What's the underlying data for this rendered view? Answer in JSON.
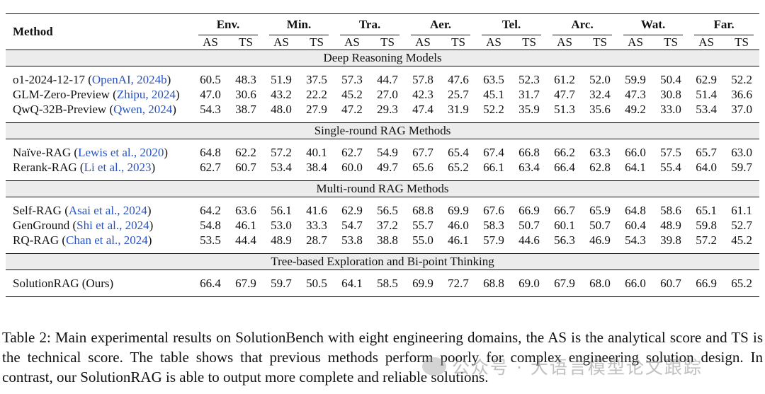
{
  "table": {
    "method_header": "Method",
    "domains": [
      "Env.",
      "Min.",
      "Tra.",
      "Aer.",
      "Tel.",
      "Arc.",
      "Wat.",
      "Far."
    ],
    "sub_headers": [
      "AS",
      "TS"
    ],
    "sections": [
      {
        "title": "Deep Reasoning Models",
        "rows": [
          {
            "method": "o1-2024-12-17 (",
            "cite": "OpenAI, 2024b",
            "suffix": ")",
            "values": [
              "60.5",
              "48.3",
              "51.9",
              "37.5",
              "57.3",
              "44.7",
              "57.8",
              "47.6",
              "63.5",
              "52.3",
              "61.2",
              "52.0",
              "59.9",
              "50.4",
              "62.9",
              "52.2"
            ]
          },
          {
            "method": "GLM-Zero-Preview (",
            "cite": "Zhipu, 2024",
            "suffix": ")",
            "values": [
              "47.0",
              "30.6",
              "43.2",
              "22.2",
              "45.2",
              "27.0",
              "42.3",
              "25.7",
              "45.1",
              "31.7",
              "47.7",
              "32.4",
              "47.3",
              "30.8",
              "51.4",
              "36.6"
            ]
          },
          {
            "method": "QwQ-32B-Preview (",
            "cite": "Qwen, 2024",
            "suffix": ")",
            "values": [
              "54.3",
              "38.7",
              "48.0",
              "27.9",
              "47.2",
              "29.3",
              "47.4",
              "31.9",
              "52.2",
              "35.9",
              "51.3",
              "35.6",
              "49.2",
              "33.0",
              "53.4",
              "37.0"
            ]
          }
        ]
      },
      {
        "title": "Single-round RAG Methods",
        "rows": [
          {
            "method": "Naïve-RAG (",
            "cite": "Lewis et al., 2020",
            "suffix": ")",
            "values": [
              "64.8",
              "62.2",
              "57.2",
              "40.1",
              "62.7",
              "54.9",
              "67.7",
              "65.4",
              "67.4",
              "66.8",
              "66.2",
              "63.3",
              "66.0",
              "57.5",
              "65.7",
              "63.0"
            ],
            "bold": [
              12
            ]
          },
          {
            "method": "Rerank-RAG (",
            "cite": "Li et al., 2023",
            "suffix": ")",
            "values": [
              "62.7",
              "60.7",
              "53.4",
              "38.4",
              "60.0",
              "49.7",
              "65.6",
              "65.2",
              "66.1",
              "63.4",
              "66.4",
              "62.8",
              "64.1",
              "55.4",
              "64.0",
              "59.7"
            ]
          }
        ]
      },
      {
        "title": "Multi-round RAG Methods",
        "rows": [
          {
            "method": "Self-RAG (",
            "cite": "Asai et al., 2024",
            "suffix": ")",
            "values": [
              "64.2",
              "63.6",
              "56.1",
              "41.6",
              "62.9",
              "56.5",
              "68.8",
              "69.9",
              "67.6",
              "66.9",
              "66.7",
              "65.9",
              "64.8",
              "58.6",
              "65.1",
              "61.1"
            ]
          },
          {
            "method": "GenGround (",
            "cite": "Shi et al., 2024",
            "suffix": ")",
            "values": [
              "54.8",
              "46.1",
              "53.0",
              "33.3",
              "54.7",
              "37.2",
              "55.7",
              "46.0",
              "58.3",
              "50.7",
              "60.1",
              "50.7",
              "60.4",
              "48.9",
              "59.8",
              "52.7"
            ]
          },
          {
            "method": "RQ-RAG (",
            "cite": "Chan et al., 2024",
            "suffix": ")",
            "values": [
              "53.5",
              "44.4",
              "48.9",
              "28.7",
              "53.8",
              "38.8",
              "55.0",
              "46.1",
              "57.9",
              "44.6",
              "56.3",
              "46.9",
              "54.3",
              "39.8",
              "57.2",
              "45.2"
            ]
          }
        ]
      },
      {
        "title": "Tree-based Exploration and Bi-point Thinking",
        "rows": [
          {
            "method": "SolutionRAG (Ours)",
            "cite": "",
            "suffix": "",
            "values": [
              "66.4",
              "67.9",
              "59.7",
              "50.5",
              "64.1",
              "58.5",
              "69.9",
              "72.7",
              "68.8",
              "69.0",
              "67.9",
              "68.0",
              "66.0",
              "60.7",
              "66.9",
              "65.2"
            ],
            "bold": [
              0,
              1,
              2,
              3,
              4,
              5,
              6,
              7,
              8,
              9,
              10,
              11,
              12,
              13,
              14,
              15
            ]
          }
        ]
      }
    ]
  },
  "caption": "Table 2: Main experimental results on SolutionBench with eight engineering domains, the AS is the analytical score and TS is the technical score. The table shows that previous methods perform poorly for complex engineering solution design. In contrast, our SolutionRAG is able to output more complete and reliable solutions.",
  "watermark": "公众号 · 大语言模型论文跟踪",
  "colors": {
    "citation": "#2a52be",
    "section_bg": "#ececec"
  }
}
